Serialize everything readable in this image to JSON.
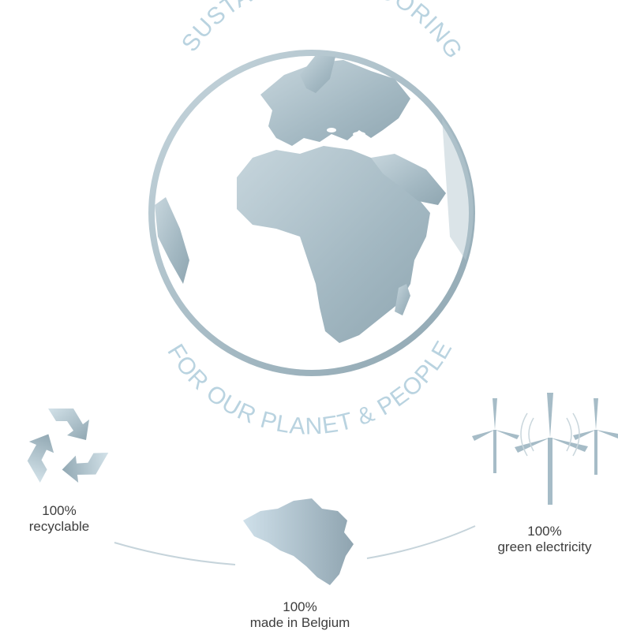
{
  "title_top": "SUSTAINABLE FLOORING",
  "title_bottom": "FOR OUR PLANET & PEOPLE",
  "features": {
    "recyclable": {
      "value": "100%",
      "label": "recyclable",
      "icon": "recycle-icon"
    },
    "belgium": {
      "value": "100%",
      "label": "made in Belgium",
      "icon": "belgium-map-icon"
    },
    "electricity": {
      "value": "100%",
      "label": "green electricity",
      "icon": "wind-turbine-icon"
    }
  },
  "colors": {
    "globe": "#9fb6c1",
    "accent_text": "#b9d3e0",
    "caption_text": "#3d3d3d"
  }
}
